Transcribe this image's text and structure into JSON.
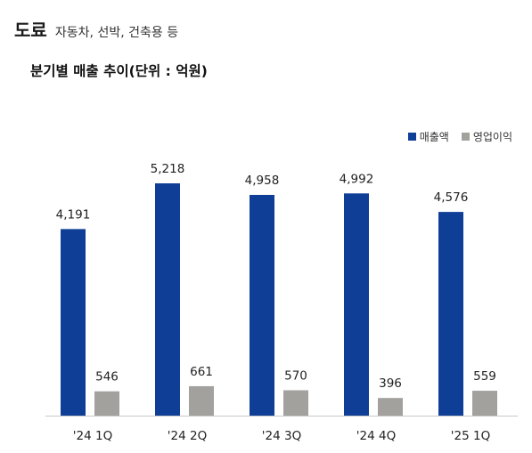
{
  "header": {
    "main": "도료",
    "sub": "자동차, 선박, 건축용 등"
  },
  "chart_data": {
    "type": "bar",
    "title": "분기별 매출 추이(단위 : 억원)",
    "categories": [
      "'24 1Q",
      "'24 2Q",
      "'24 3Q",
      "'24 4Q",
      "'25 1Q"
    ],
    "series": [
      {
        "name": "매출액",
        "values": [
          4191,
          5218,
          4958,
          4992,
          4576
        ],
        "labels": [
          "4,191",
          "5,218",
          "4,958",
          "4,992",
          "4,576"
        ],
        "color": "#0f3e96"
      },
      {
        "name": "영업이익",
        "values": [
          546,
          661,
          570,
          396,
          559
        ],
        "labels": [
          "546",
          "661",
          "570",
          "396",
          "559"
        ],
        "color": "#a3a19e"
      }
    ],
    "ylim": [
      0,
      5218
    ],
    "legend_position": "top-right",
    "grid": false
  }
}
